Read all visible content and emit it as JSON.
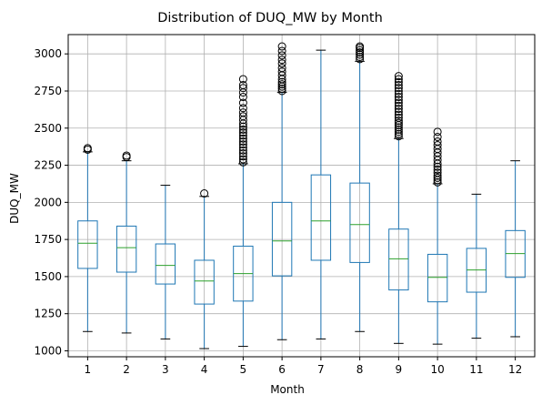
{
  "chart_data": {
    "type": "boxplot",
    "title": "Distribution of DUQ_MW by Month",
    "xlabel": "Month",
    "ylabel": "DUQ_MW",
    "ylim": [
      960,
      3130
    ],
    "grid": true,
    "yticks": [
      1000,
      1250,
      1500,
      1750,
      2000,
      2250,
      2500,
      2750,
      3000
    ],
    "categories": [
      "1",
      "2",
      "3",
      "4",
      "5",
      "6",
      "7",
      "8",
      "9",
      "10",
      "11",
      "12"
    ],
    "boxes": [
      {
        "month": "1",
        "whisker_low": 1130,
        "q1": 1555,
        "median": 1725,
        "q3": 1875,
        "whisker_high": 2340,
        "outliers": [
          2355,
          2365
        ]
      },
      {
        "month": "2",
        "whisker_low": 1120,
        "q1": 1530,
        "median": 1695,
        "q3": 1840,
        "whisker_high": 2280,
        "outliers": [
          2305,
          2315
        ]
      },
      {
        "month": "3",
        "whisker_low": 1080,
        "q1": 1450,
        "median": 1575,
        "q3": 1720,
        "whisker_high": 2115,
        "outliers": []
      },
      {
        "month": "4",
        "whisker_low": 1015,
        "q1": 1315,
        "median": 1470,
        "q3": 1610,
        "whisker_high": 2040,
        "outliers": [
          2060
        ]
      },
      {
        "month": "5",
        "whisker_low": 1030,
        "q1": 1335,
        "median": 1520,
        "q3": 1705,
        "whisker_high": 2260,
        "outliers": [
          2270,
          2290,
          2310,
          2330,
          2350,
          2370,
          2390,
          2410,
          2430,
          2450,
          2470,
          2490,
          2510,
          2530,
          2555,
          2580,
          2605,
          2635,
          2670,
          2710,
          2740,
          2770,
          2790,
          2830
        ]
      },
      {
        "month": "6",
        "whisker_low": 1075,
        "q1": 1505,
        "median": 1740,
        "q3": 2000,
        "whisker_high": 2740,
        "outliers": [
          2750,
          2765,
          2780,
          2795,
          2810,
          2830,
          2855,
          2880,
          2905,
          2935,
          2960,
          2990,
          3020,
          3050
        ]
      },
      {
        "month": "7",
        "whisker_low": 1080,
        "q1": 1610,
        "median": 1875,
        "q3": 2185,
        "whisker_high": 3025,
        "outliers": []
      },
      {
        "month": "8",
        "whisker_low": 1130,
        "q1": 1595,
        "median": 1850,
        "q3": 2130,
        "whisker_high": 2950,
        "outliers": [
          2965,
          2980,
          2995,
          3010,
          3025,
          3040,
          3050
        ]
      },
      {
        "month": "9",
        "whisker_low": 1050,
        "q1": 1410,
        "median": 1620,
        "q3": 1820,
        "whisker_high": 2430,
        "outliers": [
          2445,
          2460,
          2475,
          2490,
          2505,
          2520,
          2535,
          2550,
          2570,
          2590,
          2610,
          2630,
          2650,
          2670,
          2690,
          2710,
          2730,
          2750,
          2770,
          2790,
          2810,
          2830,
          2850
        ]
      },
      {
        "month": "10",
        "whisker_low": 1045,
        "q1": 1330,
        "median": 1495,
        "q3": 1650,
        "whisker_high": 2125,
        "outliers": [
          2135,
          2150,
          2165,
          2180,
          2200,
          2220,
          2240,
          2260,
          2285,
          2310,
          2335,
          2360,
          2385,
          2410,
          2440,
          2475
        ]
      },
      {
        "month": "11",
        "whisker_low": 1085,
        "q1": 1395,
        "median": 1545,
        "q3": 1690,
        "whisker_high": 2055,
        "outliers": []
      },
      {
        "month": "12",
        "whisker_low": 1095,
        "q1": 1495,
        "median": 1655,
        "q3": 1810,
        "whisker_high": 2280,
        "outliers": []
      }
    ],
    "colors": {
      "box": "#1f77b4",
      "median": "#2ca02c",
      "whisker": "#1f77b4",
      "cap": "#000000",
      "outlier": "#000000",
      "grid": "#b0b0b0",
      "frame": "#000000"
    }
  }
}
